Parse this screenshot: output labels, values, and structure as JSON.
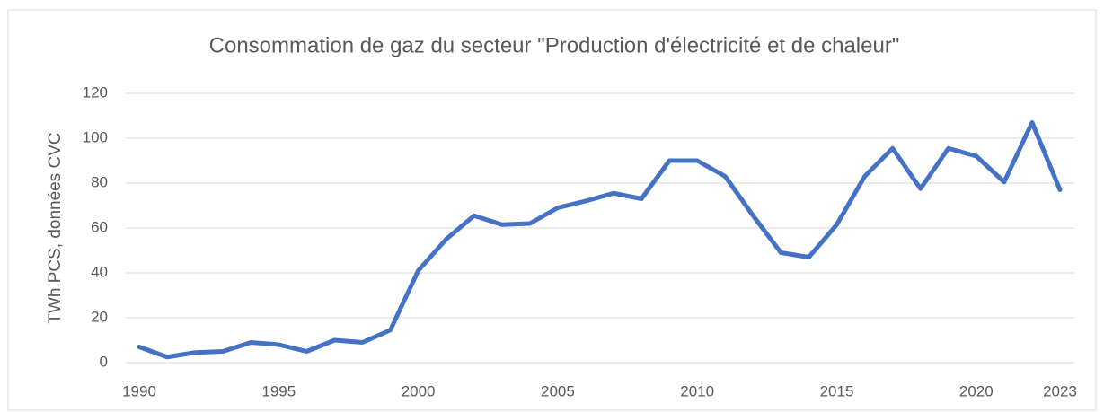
{
  "chart_data": {
    "type": "line",
    "title": "Consommation de gaz du secteur \"Production d'électricité et de chaleur\"",
    "y_label": "TWh PCS, données CVC",
    "x": [
      1990,
      1991,
      1992,
      1993,
      1994,
      1995,
      1996,
      1997,
      1998,
      1999,
      2000,
      2001,
      2002,
      2003,
      2004,
      2005,
      2006,
      2007,
      2008,
      2009,
      2010,
      2011,
      2012,
      2013,
      2014,
      2015,
      2016,
      2017,
      2018,
      2019,
      2020,
      2021,
      2022,
      2023
    ],
    "series": [
      {
        "name": "Consommation",
        "color": "#4472c4",
        "values": [
          7,
          2.5,
          4.5,
          5,
          9,
          8,
          5,
          10,
          9,
          14.5,
          41,
          55,
          65.5,
          61.5,
          62,
          69,
          72,
          75.5,
          73,
          90,
          90,
          83,
          65.5,
          49,
          47,
          61.5,
          83,
          95.5,
          77.5,
          95.5,
          92,
          80.5,
          107,
          77
        ]
      }
    ],
    "xlim": [
      1990,
      2023
    ],
    "xticks": [
      1990,
      1995,
      2000,
      2005,
      2010,
      2015,
      2020,
      2023
    ],
    "ylim": [
      0,
      120
    ],
    "yticks": [
      0,
      20,
      40,
      60,
      80,
      100,
      120
    ],
    "grid": true
  }
}
